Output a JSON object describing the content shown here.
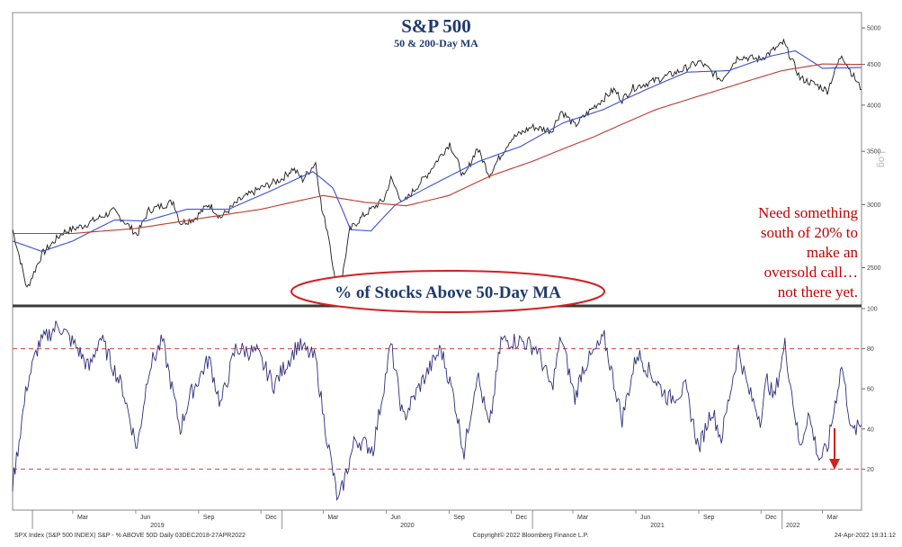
{
  "chart_data": [
    {
      "type": "line",
      "title": "S&P 500",
      "subtitle": "50 & 200-Day MA",
      "scale": "log",
      "scale_label": "Log",
      "ylim": [
        2250,
        5200
      ],
      "yticks": [
        2500,
        3000,
        3500,
        4000,
        4500,
        5000
      ],
      "x_range": [
        "2018-12-03",
        "2022-04-27"
      ],
      "colors": {
        "price": "#1a1a1a",
        "ma50": "#3b4fd8",
        "ma200": "#c0392b"
      },
      "series": [
        {
          "key": "price",
          "x": [
            "2018-12-03",
            "2018-12-24",
            "2019-01-15",
            "2019-02-15",
            "2019-03-15",
            "2019-04-15",
            "2019-04-30",
            "2019-06-03",
            "2019-06-20",
            "2019-07-26",
            "2019-08-05",
            "2019-08-26",
            "2019-09-16",
            "2019-10-03",
            "2019-10-31",
            "2019-11-29",
            "2019-12-31",
            "2020-01-17",
            "2020-01-31",
            "2020-02-19",
            "2020-02-28",
            "2020-03-09",
            "2020-03-23",
            "2020-04-09",
            "2020-04-30",
            "2020-05-29",
            "2020-06-08",
            "2020-06-26",
            "2020-07-31",
            "2020-09-02",
            "2020-09-23",
            "2020-10-12",
            "2020-10-30",
            "2020-11-30",
            "2020-12-31",
            "2021-01-29",
            "2021-02-12",
            "2021-03-04",
            "2021-03-31",
            "2021-04-30",
            "2021-05-12",
            "2021-05-28",
            "2021-06-30",
            "2021-07-30",
            "2021-08-31",
            "2021-09-02",
            "2021-10-04",
            "2021-10-29",
            "2021-11-30",
            "2021-12-31",
            "2022-01-03",
            "2022-01-27",
            "2022-02-24",
            "2022-03-08",
            "2022-03-29",
            "2022-04-12",
            "2022-04-27"
          ],
          "values": [
            2790,
            2350,
            2600,
            2770,
            2820,
            2905,
            2945,
            2750,
            2950,
            3025,
            2845,
            2880,
            3005,
            2890,
            3040,
            3140,
            3230,
            3330,
            3225,
            3386,
            2954,
            2746,
            2237,
            2790,
            2912,
            3044,
            3232,
            3010,
            3271,
            3580,
            3237,
            3535,
            3270,
            3622,
            3756,
            3714,
            3934,
            3768,
            3973,
            4181,
            4063,
            4204,
            4298,
            4395,
            4523,
            4536,
            4300,
            4605,
            4567,
            4766,
            4796,
            4326,
            4225,
            4170,
            4631,
            4397,
            4183
          ]
        },
        {
          "key": "ma50",
          "x": [
            "2018-12-03",
            "2019-01-15",
            "2019-03-01",
            "2019-05-01",
            "2019-06-15",
            "2019-08-15",
            "2019-10-15",
            "2019-12-15",
            "2020-02-15",
            "2020-03-15",
            "2020-04-10",
            "2020-05-10",
            "2020-06-15",
            "2020-08-15",
            "2020-10-15",
            "2020-12-15",
            "2021-02-15",
            "2021-04-15",
            "2021-06-15",
            "2021-08-15",
            "2021-10-15",
            "2021-12-15",
            "2022-01-20",
            "2022-03-01",
            "2022-04-27"
          ],
          "values": [
            2700,
            2620,
            2700,
            2870,
            2860,
            2960,
            2960,
            3120,
            3300,
            3150,
            2790,
            2780,
            3000,
            3200,
            3400,
            3550,
            3800,
            3950,
            4180,
            4400,
            4420,
            4610,
            4680,
            4450,
            4460
          ]
        },
        {
          "key": "ma200",
          "x": [
            "2018-12-03",
            "2019-03-01",
            "2019-06-01",
            "2019-09-01",
            "2019-12-01",
            "2020-03-01",
            "2020-05-01",
            "2020-07-01",
            "2020-09-01",
            "2020-11-01",
            "2021-01-01",
            "2021-04-01",
            "2021-07-01",
            "2021-10-01",
            "2022-01-01",
            "2022-03-01",
            "2022-04-27"
          ],
          "values": [
            2760,
            2760,
            2800,
            2880,
            2960,
            3080,
            3020,
            2990,
            3080,
            3260,
            3400,
            3650,
            3950,
            4180,
            4420,
            4505,
            4500
          ]
        }
      ]
    },
    {
      "type": "line",
      "title": "% of Stocks Above 50-Day MA",
      "ylim": [
        0,
        100
      ],
      "yticks": [
        20,
        40,
        60,
        80,
        100
      ],
      "reference_lines": [
        20,
        80
      ],
      "x_range": [
        "2018-12-03",
        "2022-04-27"
      ],
      "color": "#2e2e7a",
      "series": [
        {
          "key": "breadth",
          "x": [
            "2018-12-03",
            "2018-12-24",
            "2019-01-10",
            "2019-02-08",
            "2019-03-08",
            "2019-03-25",
            "2019-04-10",
            "2019-05-13",
            "2019-06-03",
            "2019-06-20",
            "2019-07-10",
            "2019-08-05",
            "2019-08-20",
            "2019-09-16",
            "2019-10-03",
            "2019-10-25",
            "2019-11-25",
            "2019-12-20",
            "2020-01-24",
            "2020-02-19",
            "2020-03-02",
            "2020-03-23",
            "2020-04-17",
            "2020-05-13",
            "2020-06-08",
            "2020-06-26",
            "2020-07-21",
            "2020-08-20",
            "2020-09-08",
            "2020-09-23",
            "2020-10-12",
            "2020-10-30",
            "2020-11-16",
            "2020-12-15",
            "2021-01-08",
            "2021-01-29",
            "2021-02-12",
            "2021-03-04",
            "2021-03-15",
            "2021-04-16",
            "2021-05-12",
            "2021-06-03",
            "2021-06-18",
            "2021-07-19",
            "2021-08-13",
            "2021-09-01",
            "2021-09-20",
            "2021-10-04",
            "2021-10-29",
            "2021-11-12",
            "2021-11-30",
            "2021-12-10",
            "2021-12-20",
            "2022-01-05",
            "2022-01-27",
            "2022-02-08",
            "2022-02-24",
            "2022-03-08",
            "2022-03-29",
            "2022-04-13",
            "2022-04-27"
          ],
          "values": [
            12,
            62,
            82,
            92,
            80,
            70,
            86,
            60,
            30,
            70,
            84,
            40,
            57,
            75,
            52,
            80,
            78,
            62,
            82,
            75,
            45,
            3,
            35,
            30,
            82,
            45,
            62,
            80,
            56,
            28,
            68,
            40,
            84,
            84,
            80,
            60,
            86,
            55,
            70,
            85,
            45,
            78,
            70,
            55,
            60,
            30,
            50,
            35,
            80,
            60,
            45,
            65,
            55,
            82,
            30,
            48,
            25,
            30,
            72,
            38,
            42
          ]
        }
      ]
    }
  ],
  "months_row1": [
    "Mar",
    "Jun",
    "Sep",
    "Dec",
    "Mar",
    "Jun",
    "Sep",
    "Dec",
    "Mar",
    "Jun",
    "Sep",
    "Dec",
    "Mar"
  ],
  "years": [
    "2019",
    "2020",
    "2021",
    "2022"
  ],
  "annotation": {
    "line1": "Need something",
    "line2": "south of 20% to",
    "line3": "make an",
    "line4": "oversold call…",
    "line5": "not there yet."
  },
  "footer": {
    "left": "SPX Index (S&P 500 INDEX) S&P - % ABOVE 50D  Daily 03DEC2018-27APR2022",
    "center": "Copyright© 2022 Bloomberg Finance L.P.",
    "right": "24-Apr-2022 19:31:12"
  }
}
